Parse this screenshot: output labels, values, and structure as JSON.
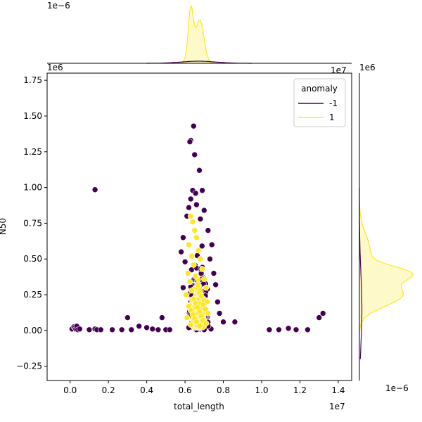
{
  "chart_data": {
    "type": "scatter",
    "kind": "jointplot",
    "xlabel": "total_length",
    "ylabel": "N50",
    "x_multiplier": "1e7",
    "y_multiplier": "1e6",
    "top_marginal_multiplier": "1e−6",
    "right_marginal_multiplier": "1e−6",
    "xlim": [
      -1200000,
      14700000
    ],
    "ylim": [
      -350000,
      1800000
    ],
    "x_ticks": [
      0,
      2000000,
      4000000,
      6000000,
      8000000,
      10000000,
      12000000,
      14000000
    ],
    "x_tick_labels": [
      "0.0",
      "0.2",
      "0.4",
      "0.6",
      "0.8",
      "1.0",
      "1.2",
      "1.4"
    ],
    "y_ticks": [
      -250000,
      0,
      250000,
      500000,
      750000,
      1000000,
      1250000,
      1500000,
      1750000
    ],
    "y_tick_labels": [
      "−0.25",
      "0.00",
      "0.25",
      "0.50",
      "0.75",
      "1.00",
      "1.25",
      "1.50",
      "1.75"
    ],
    "legend": {
      "title": "anomaly",
      "placement": "top-right",
      "entries": [
        {
          "label": "-1",
          "color": "#440154"
        },
        {
          "label": "1",
          "color": "#fde725"
        }
      ]
    },
    "series": [
      {
        "name": "-1",
        "color": "#440154",
        "points": [
          [
            100000,
            10000
          ],
          [
            200000,
            25000
          ],
          [
            250000,
            20000
          ],
          [
            300000,
            10000
          ],
          [
            350000,
            30000
          ],
          [
            400000,
            5000
          ],
          [
            500000,
            10000
          ],
          [
            1000000,
            5000
          ],
          [
            1300000,
            10000
          ],
          [
            1400000,
            5000
          ],
          [
            1600000,
            5000
          ],
          [
            2200000,
            5000
          ],
          [
            2700000,
            5000
          ],
          [
            3000000,
            90000
          ],
          [
            3200000,
            5000
          ],
          [
            3600000,
            30000
          ],
          [
            4000000,
            20000
          ],
          [
            4300000,
            10000
          ],
          [
            4600000,
            5000
          ],
          [
            4800000,
            90000
          ],
          [
            5000000,
            5000
          ],
          [
            5200000,
            5000
          ],
          [
            1300000,
            985000
          ],
          [
            6300000,
            1330000
          ],
          [
            6250000,
            1320000
          ],
          [
            6450000,
            1430000
          ],
          [
            6500000,
            1230000
          ],
          [
            6750000,
            1120000
          ],
          [
            6400000,
            980000
          ],
          [
            6550000,
            960000
          ],
          [
            6900000,
            980000
          ],
          [
            6300000,
            920000
          ],
          [
            6600000,
            880000
          ],
          [
            6200000,
            860000
          ],
          [
            7000000,
            840000
          ],
          [
            6100000,
            800000
          ],
          [
            6800000,
            780000
          ],
          [
            7200000,
            700000
          ],
          [
            5900000,
            650000
          ],
          [
            7400000,
            600000
          ],
          [
            5800000,
            550000
          ],
          [
            7300000,
            500000
          ],
          [
            6000000,
            480000
          ],
          [
            7500000,
            400000
          ],
          [
            7600000,
            320000
          ],
          [
            5900000,
            300000
          ],
          [
            7700000,
            200000
          ],
          [
            7800000,
            120000
          ],
          [
            8000000,
            60000
          ],
          [
            8600000,
            60000
          ],
          [
            7200000,
            30000
          ],
          [
            6200000,
            20000
          ],
          [
            6600000,
            5000
          ],
          [
            7000000,
            5000
          ],
          [
            10400000,
            5000
          ],
          [
            10900000,
            5000
          ],
          [
            11400000,
            15000
          ],
          [
            11800000,
            5000
          ],
          [
            12400000,
            5000
          ],
          [
            13000000,
            90000
          ],
          [
            13200000,
            120000
          ]
        ]
      },
      {
        "name": "1",
        "color": "#fde725",
        "points": [
          [
            6300000,
            800000
          ],
          [
            6400000,
            760000
          ],
          [
            6500000,
            700000
          ],
          [
            6600000,
            650000
          ],
          [
            6200000,
            600000
          ],
          [
            6700000,
            560000
          ],
          [
            6350000,
            520000
          ],
          [
            6800000,
            500000
          ],
          [
            6450000,
            460000
          ],
          [
            6900000,
            430000
          ],
          [
            6150000,
            400000
          ],
          [
            6550000,
            380000
          ],
          [
            7000000,
            360000
          ],
          [
            6250000,
            340000
          ],
          [
            6650000,
            320000
          ],
          [
            7100000,
            300000
          ],
          [
            6350000,
            280000
          ],
          [
            6750000,
            260000
          ],
          [
            6050000,
            250000
          ],
          [
            6850000,
            240000
          ],
          [
            6450000,
            220000
          ],
          [
            7150000,
            200000
          ],
          [
            6550000,
            190000
          ],
          [
            6950000,
            180000
          ],
          [
            6200000,
            170000
          ],
          [
            6650000,
            160000
          ],
          [
            7050000,
            150000
          ],
          [
            6300000,
            140000
          ],
          [
            6750000,
            130000
          ],
          [
            7200000,
            120000
          ],
          [
            6400000,
            110000
          ],
          [
            6850000,
            100000
          ],
          [
            6100000,
            90000
          ],
          [
            6500000,
            80000
          ],
          [
            6950000,
            70000
          ],
          [
            6600000,
            60000
          ],
          [
            7100000,
            50000
          ],
          [
            6300000,
            40000
          ],
          [
            6750000,
            30000
          ]
        ]
      }
    ]
  }
}
